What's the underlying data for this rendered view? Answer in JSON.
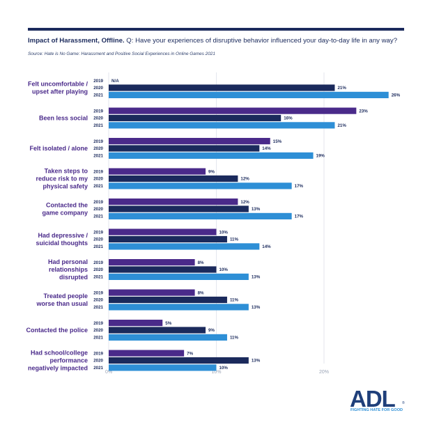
{
  "header": {
    "title_bold": "Impact of Harassment, Offline.",
    "title_rest": " Q: Have your experiences of disruptive behavior influenced your day-to-day life in any way?",
    "source": "Source: Hate is No Game: Harassment and Positive Social Experiences in Online Games 2021"
  },
  "colors": {
    "y2019": "#4a2a8a",
    "y2020": "#1b2a5c",
    "y2021": "#2e8fd6",
    "grid": "#e3e6ee"
  },
  "chart_data": {
    "type": "bar",
    "orientation": "horizontal",
    "title": "Impact of Harassment, Offline.",
    "xlim": [
      0,
      20
    ],
    "xticks": [
      "0%",
      "10%",
      "20%"
    ],
    "series_names": [
      "2019",
      "2020",
      "2021"
    ],
    "categories": [
      {
        "label": [
          "Felt uncomfortable /",
          "upset after playing"
        ],
        "values": [
          null,
          21,
          26
        ],
        "labels": [
          "N/A",
          "21%",
          "26%"
        ]
      },
      {
        "label": [
          "Been less social"
        ],
        "values": [
          23,
          16,
          21
        ],
        "labels": [
          "23%",
          "16%",
          "21%"
        ]
      },
      {
        "label": [
          "Felt isolated / alone"
        ],
        "values": [
          15,
          14,
          19
        ],
        "labels": [
          "15%",
          "14%",
          "19%"
        ]
      },
      {
        "label": [
          "Taken steps to",
          "reduce risk to my",
          "physical safety"
        ],
        "values": [
          9,
          12,
          17
        ],
        "labels": [
          "9%",
          "12%",
          "17%"
        ]
      },
      {
        "label": [
          "Contacted the",
          "game company"
        ],
        "values": [
          12,
          13,
          17
        ],
        "labels": [
          "12%",
          "13%",
          "17%"
        ]
      },
      {
        "label": [
          "Had depressive /",
          "suicidal thoughts"
        ],
        "values": [
          10,
          11,
          14
        ],
        "labels": [
          "10%",
          "11%",
          "14%"
        ]
      },
      {
        "label": [
          "Had personal",
          "relationships",
          "disrupted"
        ],
        "values": [
          8,
          10,
          13
        ],
        "labels": [
          "8%",
          "10%",
          "13%"
        ]
      },
      {
        "label": [
          "Treated people",
          "worse than usual"
        ],
        "values": [
          8,
          11,
          13
        ],
        "labels": [
          "8%",
          "11%",
          "13%"
        ]
      },
      {
        "label": [
          "Contacted the police"
        ],
        "values": [
          5,
          9,
          11
        ],
        "labels": [
          "5%",
          "9%",
          "11%"
        ]
      },
      {
        "label": [
          "Had school/college",
          "performance",
          "negatively impacted"
        ],
        "values": [
          7,
          13,
          10
        ],
        "labels": [
          "7%",
          "13%",
          "10%"
        ]
      }
    ]
  },
  "logo": {
    "text": "ADL",
    "registered": "®",
    "tagline": "FIGHTING HATE FOR GOOD"
  }
}
